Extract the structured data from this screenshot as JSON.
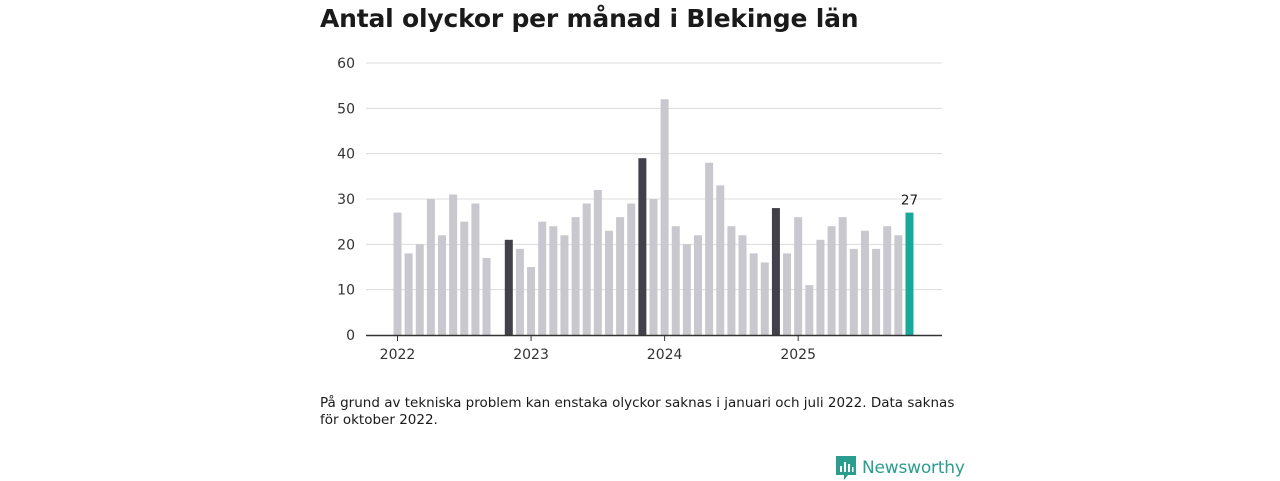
{
  "title": "Antal olyckor per månad i Blekinge län",
  "note": "På grund av tekniska problem kan enstaka olyckor saknas i januari och juli 2022. Data saknas för oktober 2022.",
  "brand": {
    "name": "Newsworthy",
    "color": "#2a9d8f"
  },
  "colors": {
    "bar": "#c8c8ce",
    "highlight": "#42414b",
    "current": "#17a99b",
    "grid": "#dcdcdc",
    "axis": "#333333"
  },
  "chart_data": {
    "type": "bar",
    "title": "Antal olyckor per månad i Blekinge län",
    "xlabel": "",
    "ylabel": "",
    "ylim": [
      0,
      60
    ],
    "yticks": [
      "0",
      "10",
      "20",
      "30",
      "40",
      "50",
      "60"
    ],
    "year_labels": [
      {
        "label": "2022",
        "index": 0
      },
      {
        "label": "2023",
        "index": 12
      },
      {
        "label": "2024",
        "index": 24
      },
      {
        "label": "2025",
        "index": 36
      }
    ],
    "categories": [
      "2022-01",
      "2022-02",
      "2022-03",
      "2022-04",
      "2022-05",
      "2022-06",
      "2022-07",
      "2022-08",
      "2022-09",
      "2022-10",
      "2022-11",
      "2022-12",
      "2023-01",
      "2023-02",
      "2023-03",
      "2023-04",
      "2023-05",
      "2023-06",
      "2023-07",
      "2023-08",
      "2023-09",
      "2023-10",
      "2023-11",
      "2023-12",
      "2024-01",
      "2024-02",
      "2024-03",
      "2024-04",
      "2024-05",
      "2024-06",
      "2024-07",
      "2024-08",
      "2024-09",
      "2024-10",
      "2024-11",
      "2024-12",
      "2025-01",
      "2025-02",
      "2025-03",
      "2025-04",
      "2025-05",
      "2025-06",
      "2025-07",
      "2025-08",
      "2025-09",
      "2025-10",
      "2025-11"
    ],
    "values": [
      27,
      18,
      20,
      30,
      22,
      31,
      25,
      29,
      17,
      null,
      21,
      19,
      15,
      25,
      24,
      22,
      26,
      29,
      32,
      23,
      26,
      29,
      39,
      30,
      52,
      24,
      20,
      22,
      38,
      33,
      24,
      22,
      18,
      16,
      28,
      18,
      26,
      11,
      21,
      24,
      26,
      19,
      23,
      19,
      24,
      22,
      27
    ],
    "highlight_indices": [
      10,
      22,
      34
    ],
    "current_index": 46,
    "current_label": "27"
  }
}
